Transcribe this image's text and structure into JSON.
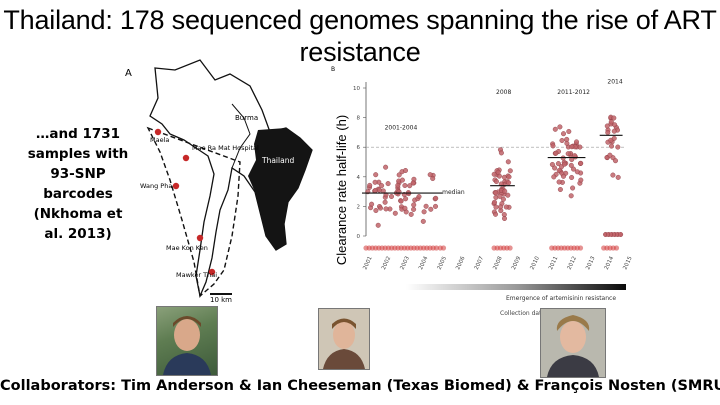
{
  "slide": {
    "title": "Thailand: 178 sequenced genomes spanning the rise of ART resistance",
    "side_text": "…and 1731 samples with 93-SNP barcodes (Nkhoma et al. 2013)",
    "footer": "Collaborators: Tim Anderson & Ian Cheeseman (Texas Biomed) & François Nosten (SMRU)"
  },
  "map": {
    "panel_letter": "A",
    "countries": [
      "Burma",
      "Thailand"
    ],
    "sites": [
      "Maela",
      "Mae Ra Mat Hospital",
      "Wang Pha",
      "Mae Kon Ken",
      "Mawker Thai"
    ],
    "scale": "10 km"
  },
  "chart_data": {
    "type": "scatter",
    "panel_letter": "B",
    "ylabel": "Clearance rate half-life (h)",
    "xlabel": "Collection date",
    "yticks": [
      "0",
      "2",
      "4",
      "6",
      "8",
      "10"
    ],
    "xticks": [
      "2001",
      "2002",
      "2003",
      "2004",
      "2005",
      "2006",
      "2007",
      "2008",
      "2009",
      "2010",
      "2011",
      "2012",
      "2013",
      "2014",
      "2015"
    ],
    "ylim": [
      0,
      10
    ],
    "period_labels": [
      "2001-2004",
      "2008",
      "2011-2012",
      "2014"
    ],
    "median_label": "median",
    "medians": [
      {
        "period": "2001-2004",
        "value": 2.9
      },
      {
        "period": "2008",
        "value": 3.4
      },
      {
        "period": "2011-2012",
        "value": 5.3
      },
      {
        "period": "2014",
        "value": 6.8
      }
    ],
    "threshold": 6.0,
    "gradient_label": "Emergence of artemisinin resistance",
    "point_color": "#c0646a"
  }
}
